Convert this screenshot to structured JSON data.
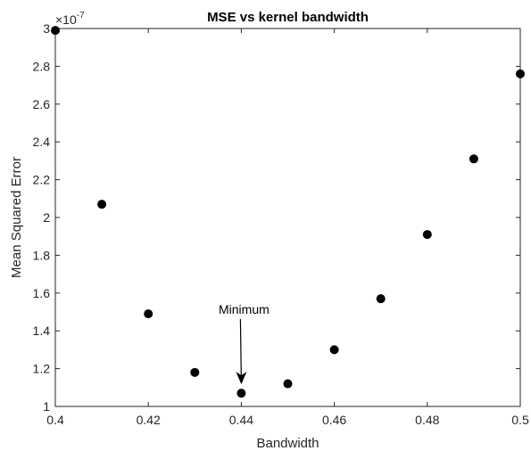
{
  "chart_data": {
    "type": "scatter",
    "title": "MSE vs kernel bandwidth",
    "xlabel": "Bandwidth",
    "ylabel": "Mean Squared Error",
    "y_exponent_label": "×10",
    "y_exponent_power": "-7",
    "xlim": [
      0.4,
      0.5
    ],
    "ylim": [
      1,
      3
    ],
    "xticks": [
      "0.4",
      "0.42",
      "0.44",
      "0.46",
      "0.48",
      "0.5"
    ],
    "yticks": [
      "1",
      "1.2",
      "1.4",
      "1.6",
      "1.8",
      "2",
      "2.2",
      "2.4",
      "2.6",
      "2.8",
      "3"
    ],
    "grid": false,
    "marker_color": "#000000",
    "series": [
      {
        "x": [
          0.4,
          0.41,
          0.42,
          0.43,
          0.44,
          0.45,
          0.46,
          0.47,
          0.48,
          0.49,
          0.5
        ],
        "y": [
          2.99,
          2.07,
          1.49,
          1.18,
          1.07,
          1.12,
          1.3,
          1.57,
          1.91,
          2.31,
          2.76
        ]
      }
    ],
    "annotation": {
      "text": "Minimum",
      "x": 0.44,
      "y": 1.07
    }
  }
}
